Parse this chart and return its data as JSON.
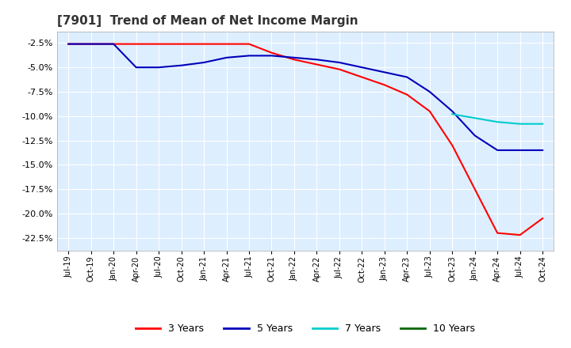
{
  "title": "[7901]  Trend of Mean of Net Income Margin",
  "title_fontsize": 11,
  "background_color": "#ffffff",
  "plot_background_color": "#ddeeff",
  "grid_color": "#ffffff",
  "yticks": [
    -0.025,
    -0.05,
    -0.075,
    -0.1,
    -0.125,
    -0.15,
    -0.175,
    -0.2,
    -0.225
  ],
  "ylim": [
    -0.238,
    -0.013
  ],
  "xtick_labels": [
    "Jul-19",
    "Oct-19",
    "Jan-20",
    "Apr-20",
    "Jul-20",
    "Oct-20",
    "Jan-21",
    "Apr-21",
    "Jul-21",
    "Oct-21",
    "Jan-22",
    "Apr-22",
    "Jul-22",
    "Oct-22",
    "Jan-23",
    "Apr-23",
    "Jul-23",
    "Oct-23",
    "Jan-24",
    "Apr-24",
    "Jul-24",
    "Oct-24"
  ],
  "series": {
    "3 Years": {
      "color": "#ff0000",
      "data_y": [
        -0.026,
        -0.026,
        -0.026,
        -0.026,
        -0.026,
        -0.026,
        -0.026,
        -0.026,
        -0.026,
        -0.035,
        -0.042,
        -0.047,
        -0.052,
        -0.06,
        -0.068,
        -0.078,
        -0.095,
        -0.13,
        -0.175,
        -0.22,
        -0.222,
        -0.205
      ]
    },
    "5 Years": {
      "color": "#0000bb",
      "data_y": [
        -0.026,
        -0.026,
        -0.026,
        -0.05,
        -0.05,
        -0.048,
        -0.045,
        -0.04,
        -0.038,
        -0.038,
        -0.04,
        -0.042,
        -0.045,
        -0.05,
        -0.055,
        -0.06,
        -0.075,
        -0.095,
        -0.12,
        -0.135,
        -0.135,
        -0.135
      ]
    },
    "7 Years": {
      "color": "#00cccc",
      "data_y": [
        null,
        null,
        null,
        null,
        null,
        null,
        null,
        null,
        null,
        null,
        null,
        null,
        null,
        null,
        null,
        null,
        null,
        -0.098,
        -0.102,
        -0.106,
        -0.108,
        -0.108
      ]
    },
    "10 Years": {
      "color": "#006600",
      "data_y": [
        null,
        null,
        null,
        null,
        null,
        null,
        null,
        null,
        null,
        null,
        null,
        null,
        null,
        null,
        null,
        null,
        null,
        null,
        null,
        null,
        null,
        null
      ]
    }
  },
  "legend_labels": [
    "3 Years",
    "5 Years",
    "7 Years",
    "10 Years"
  ],
  "legend_colors": [
    "#ff0000",
    "#0000bb",
    "#00cccc",
    "#006600"
  ]
}
